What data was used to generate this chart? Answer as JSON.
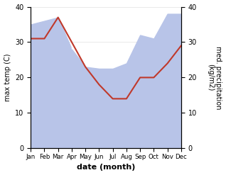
{
  "months": [
    "Jan",
    "Feb",
    "Mar",
    "Apr",
    "May",
    "Jun",
    "Jul",
    "Aug",
    "Sep",
    "Oct",
    "Nov",
    "Dec"
  ],
  "x": [
    0,
    1,
    2,
    3,
    4,
    5,
    6,
    7,
    8,
    9,
    10,
    11
  ],
  "max_temp": [
    31,
    31,
    37,
    30,
    23,
    18,
    14,
    14,
    20,
    20,
    24,
    29
  ],
  "precipitation": [
    35,
    36,
    37,
    28,
    23,
    22.5,
    22.5,
    24,
    32,
    31,
    38,
    38
  ],
  "temp_color": "#c0392b",
  "precip_fill_color": "#b8c4e8",
  "precip_line_color": "#b8c4e8",
  "background_color": "#ffffff",
  "ylabel_left": "max temp (C)",
  "ylabel_right": "med. precipitation\n(kg/m2)",
  "xlabel": "date (month)",
  "ylim": [
    0,
    40
  ],
  "title": ""
}
